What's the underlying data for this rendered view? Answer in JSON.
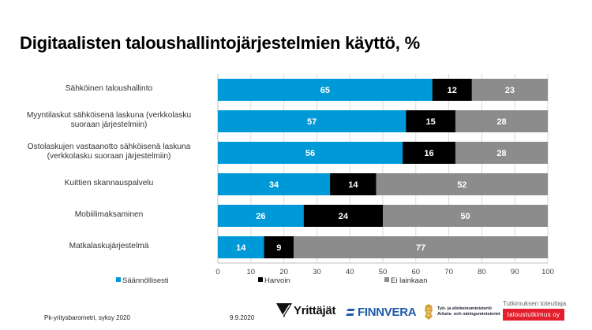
{
  "slide": {
    "title": "Digitaalisten taloushallintojärjestelmien käyttö, %",
    "footer": {
      "source": "Pk-yritysbarometri, syksy 2020",
      "date": "9.9.2020",
      "logos": {
        "yrittajat": "Yrittäjät",
        "finnvera": "FINNVERA",
        "tem_line1": "Työ- ja elinkeinoministeriö",
        "tem_line2": "Arbets- och näringsministeriet",
        "research_label": "Tutkimuksen toteuttaja",
        "research_company": "taloustutkimus oy"
      }
    }
  },
  "colors": {
    "saannollisesti": "#0099d8",
    "harvoin": "#000000",
    "ei_lainkaan": "#8c8c8c",
    "research_badge": "#e31e2d"
  },
  "chart_data": {
    "type": "bar",
    "orientation": "horizontal",
    "stacked": true,
    "title": "Digitaalisten taloushallintojärjestelmien käyttö, %",
    "categories": [
      "Sähköinen taloushallinto",
      "Myyntilaskut sähköisenä laskuna (verkkolasku suoraan järjestelmiin)",
      "Ostolaskujen vastaanotto sähköisenä laskuna (verkkolasku suoraan järjestelmiin)",
      "Kuittien skannauspalvelu",
      "Mobiilimaksaminen",
      "Matkalaskujärjestelmä"
    ],
    "category_lines": [
      [
        "Sähköinen taloushallinto"
      ],
      [
        "Myyntilaskut sähköisenä laskuna (verkkolasku",
        "suoraan järjestelmiin)"
      ],
      [
        "Ostolaskujen vastaanotto sähköisenä laskuna",
        "(verkkolasku suoraan järjestelmiin)"
      ],
      [
        "Kuittien skannauspalvelu"
      ],
      [
        "Mobiilimaksaminen"
      ],
      [
        "Matkalaskujärjestelmä"
      ]
    ],
    "series": [
      {
        "name": "Säännöllisesti",
        "color": "#0099d8",
        "values": [
          65,
          57,
          56,
          34,
          26,
          14
        ]
      },
      {
        "name": "Harvoin",
        "color": "#000000",
        "values": [
          12,
          15,
          16,
          14,
          24,
          9
        ]
      },
      {
        "name": "Ei lainkaan",
        "color": "#8c8c8c",
        "values": [
          23,
          28,
          28,
          52,
          50,
          77
        ]
      }
    ],
    "xlim": [
      0,
      100
    ],
    "xticks": [
      0,
      10,
      20,
      30,
      40,
      50,
      60,
      70,
      80,
      90,
      100
    ],
    "grid": true,
    "data_labels": true,
    "legend_position": "bottom",
    "xlabel": "",
    "ylabel": ""
  }
}
